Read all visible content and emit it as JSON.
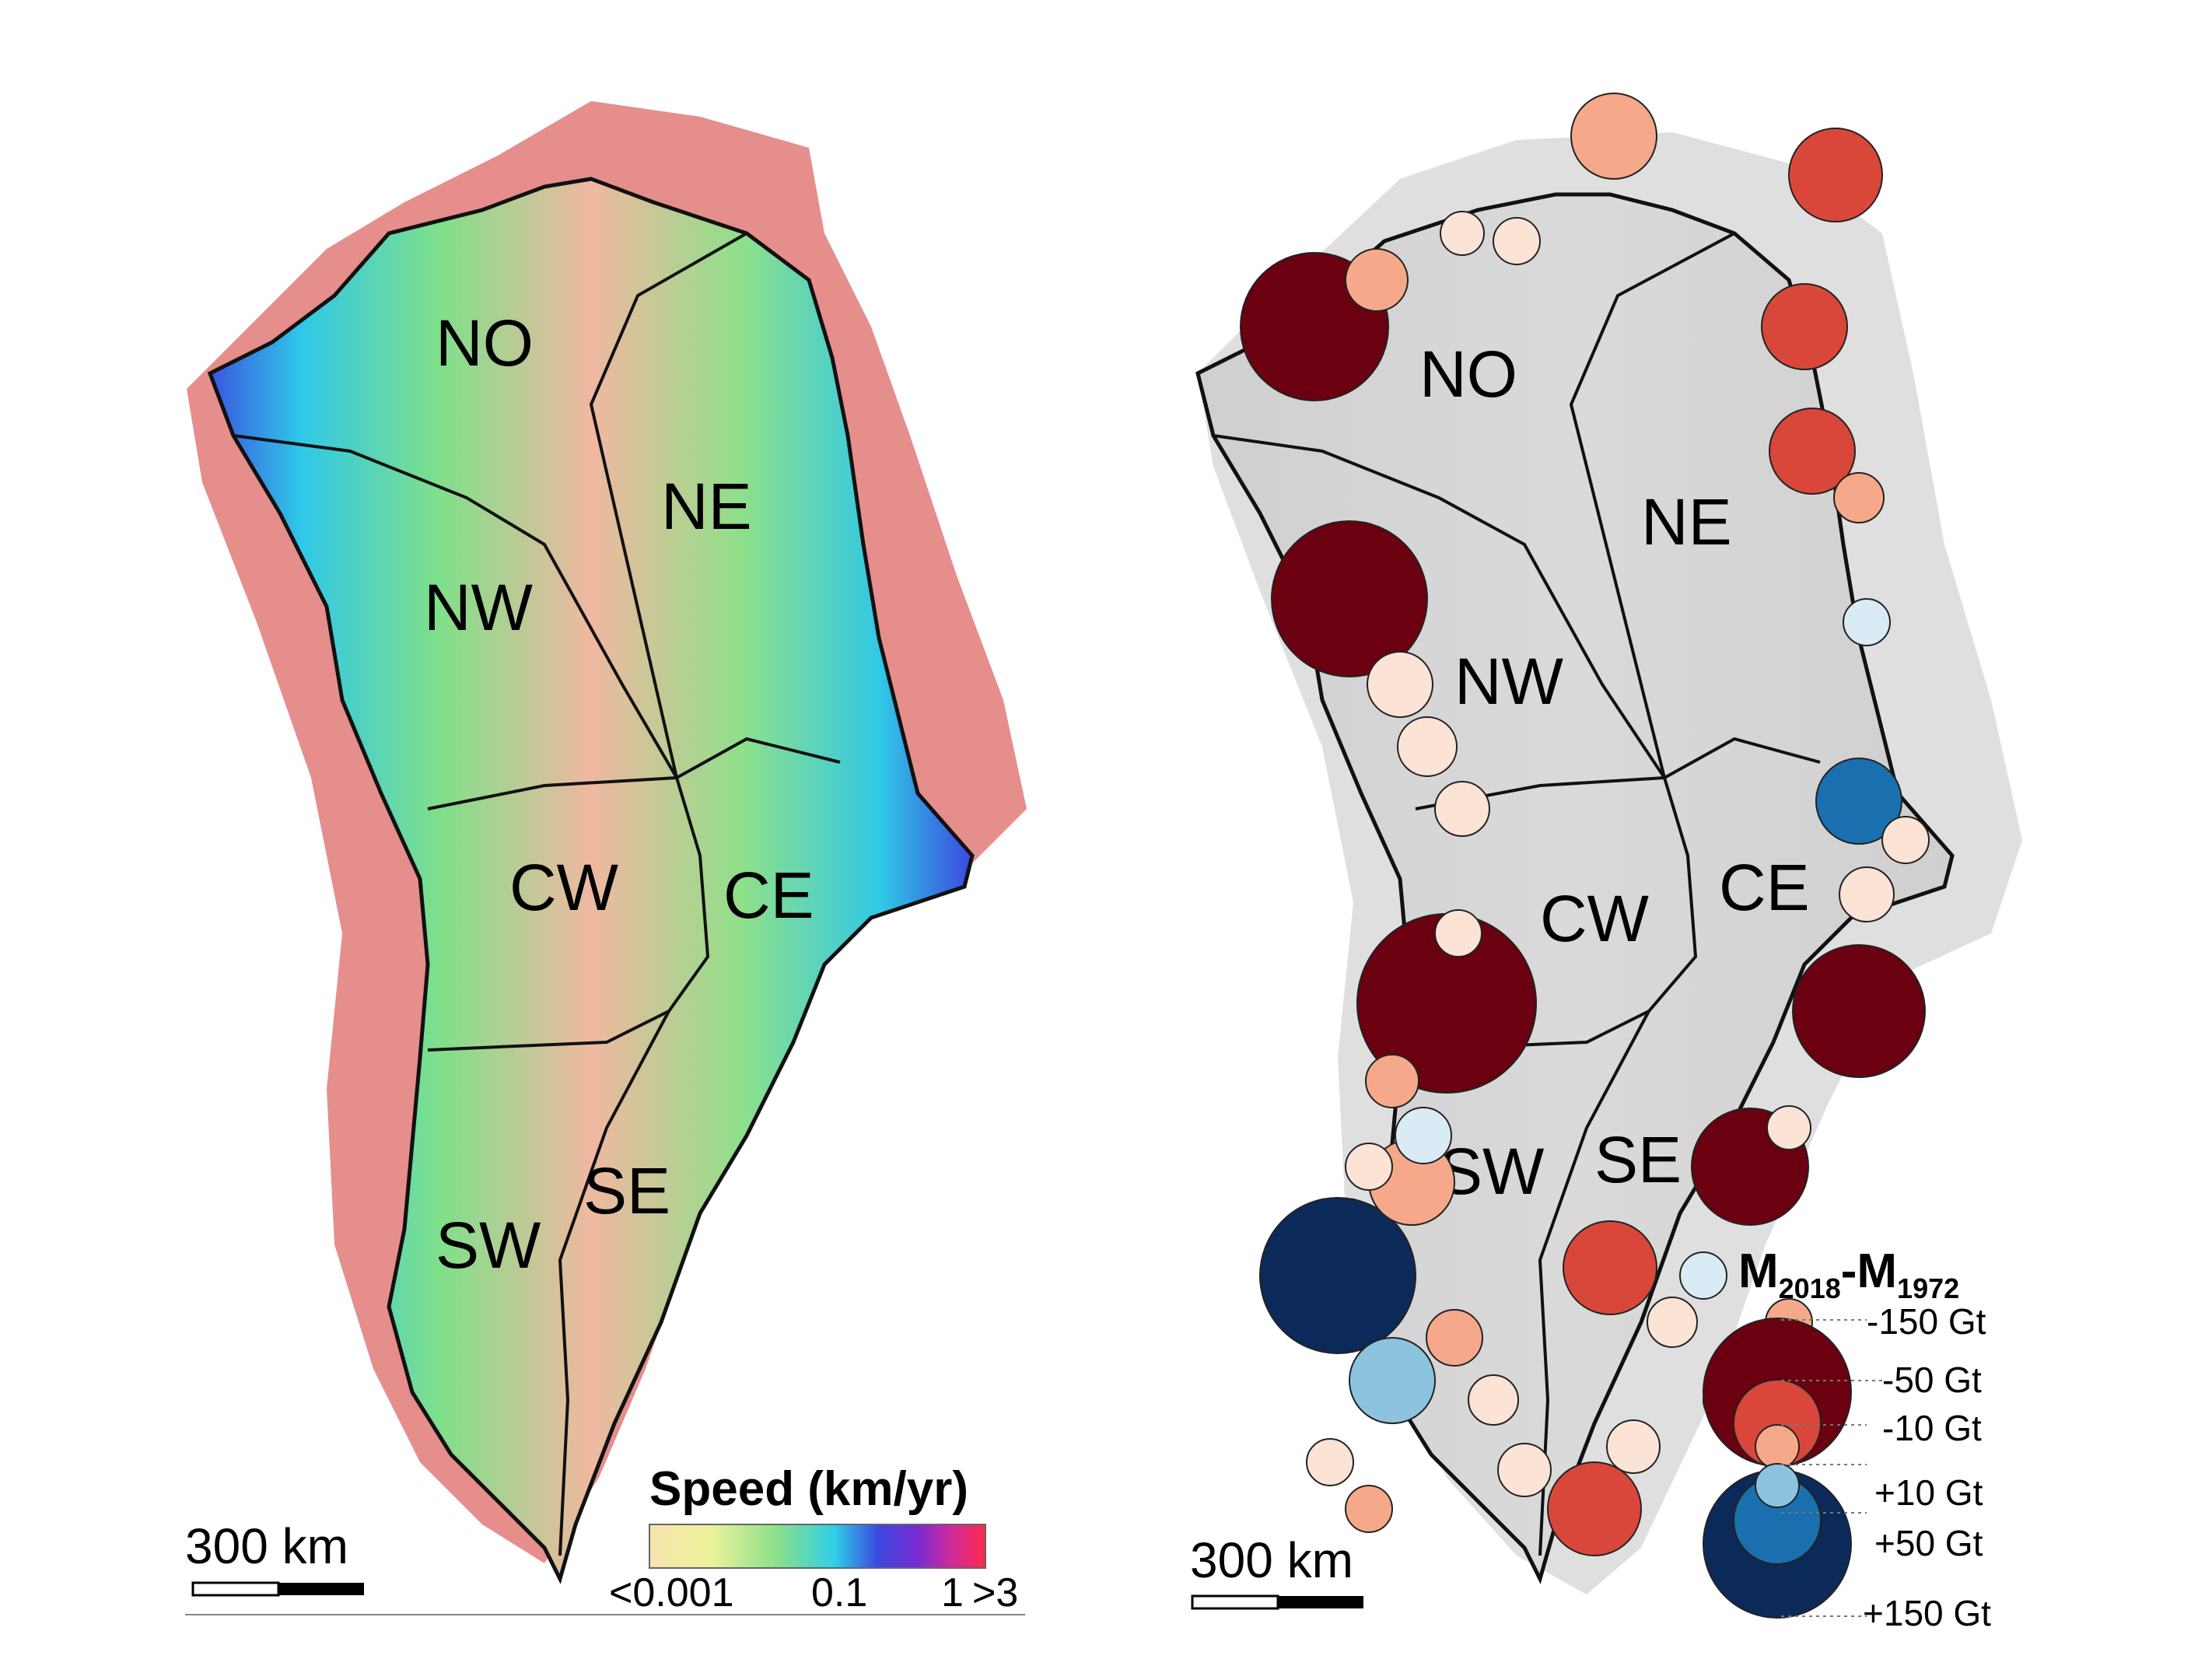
{
  "left_map": {
    "regions": [
      "NO",
      "NE",
      "NW",
      "CW",
      "CE",
      "SW",
      "SE"
    ],
    "scale_label": "300 km",
    "speed_legend": {
      "title": "Speed (km/yr)",
      "tick_labels": [
        "<0.001",
        "0.1",
        "1",
        ">3"
      ],
      "colors": [
        "#f7e3b0",
        "#eef29a",
        "#8be08a",
        "#2fd0e8",
        "#3a48e0",
        "#7a2ad0",
        "#d02a9a",
        "#ff2a4a"
      ]
    }
  },
  "right_map": {
    "regions": [
      "NO",
      "NE",
      "NW",
      "CW",
      "CE",
      "SW",
      "SE"
    ],
    "scale_label": "300 km",
    "mass_legend": {
      "title_main": "M",
      "title_sub_1": "2018",
      "title_dash": "-M",
      "title_sub_2": "1972",
      "size_labels": [
        "-150 Gt",
        "-50 Gt",
        "-10 Gt",
        "+10 Gt",
        "+50 Gt",
        "+150 Gt"
      ],
      "loss_colors": [
        "#6b0011",
        "#d9473b",
        "#f5a98a",
        "#fbe3d6"
      ],
      "gain_colors": [
        "#0b2a5a",
        "#1a6fae",
        "#8cc4e0",
        "#d9ebf5"
      ]
    }
  }
}
